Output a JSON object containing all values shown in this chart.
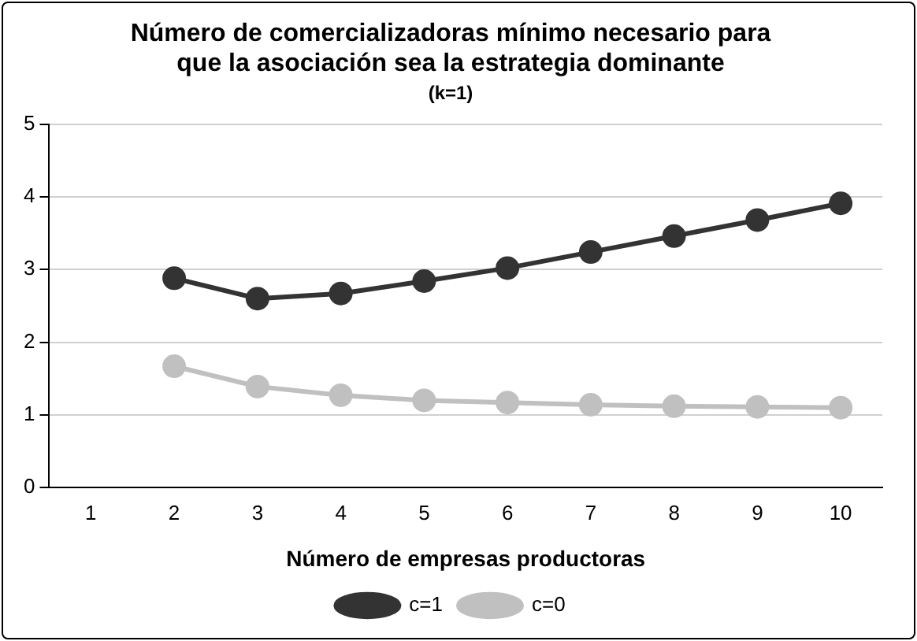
{
  "chart_data": {
    "type": "line",
    "title": "Número de comercializadoras mínimo necesario para\nque la asociación sea la estrategia dominante",
    "subtitle": "(k=1)",
    "xlabel": "Número de empresas productoras",
    "categories": [
      "1",
      "2",
      "3",
      "4",
      "5",
      "6",
      "7",
      "8",
      "9",
      "10"
    ],
    "series": [
      {
        "name": "c=1",
        "color": "#333333",
        "values": [
          null,
          2.88,
          2.6,
          2.67,
          2.84,
          3.02,
          3.24,
          3.46,
          3.68,
          3.91
        ]
      },
      {
        "name": "c=0",
        "color": "#c0c0c0",
        "values": [
          null,
          1.67,
          1.39,
          1.27,
          1.2,
          1.17,
          1.14,
          1.12,
          1.11,
          1.1
        ]
      }
    ],
    "ylim": [
      0,
      5
    ],
    "yticks": [
      0,
      1,
      2,
      3,
      4,
      5
    ],
    "grid": "y",
    "legend": "bottom",
    "marker": "circle",
    "line_style": "solid"
  }
}
